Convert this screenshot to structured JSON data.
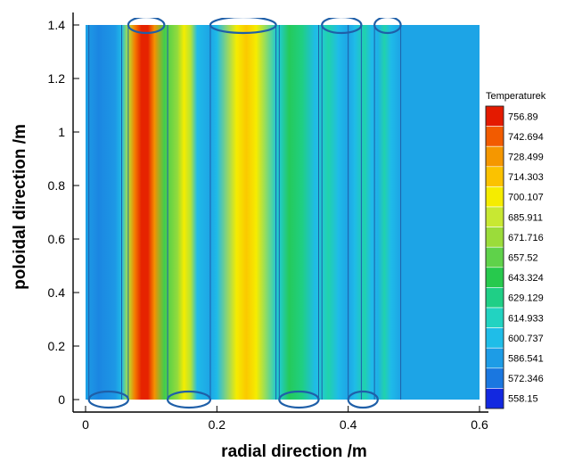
{
  "chart_data": {
    "type": "heatmap",
    "title": "",
    "xlabel": "radial direction /m",
    "ylabel": "poloidal direction /m",
    "xlim": [
      -0.01,
      0.6
    ],
    "ylim": [
      -0.03,
      1.42
    ],
    "xticks": [
      0,
      0.2,
      0.4,
      0.6
    ],
    "xtick_labels": [
      "0",
      "0.2",
      "0.4",
      "0.6"
    ],
    "yticks": [
      0,
      0.2,
      0.4,
      0.6,
      0.8,
      1,
      1.2,
      1.4
    ],
    "ytick_labels": [
      "0",
      "0.2",
      "0.4",
      "0.6",
      "0.8",
      "1",
      "1.2",
      "1.4"
    ],
    "domain": {
      "x": [
        0,
        0.6
      ],
      "y": [
        0,
        1.4
      ]
    },
    "colorbar": {
      "title": "Temperaturek",
      "levels": [
        "756.89",
        "742.694",
        "728.499",
        "714.303",
        "700.107",
        "685.911",
        "671.716",
        "657.52",
        "643.324",
        "629.129",
        "614.933",
        "600.737",
        "586.541",
        "572.346",
        "558.15"
      ],
      "colors": [
        "#e41a00",
        "#f25b00",
        "#f59700",
        "#fbc200",
        "#f5ec00",
        "#c8e832",
        "#9bdc3a",
        "#5fd24a",
        "#27c94d",
        "#1fcf86",
        "#22d3c1",
        "#1fbde8",
        "#1d9ce6",
        "#1a77e0",
        "#1228e0"
      ]
    },
    "radial_temperature_profile": {
      "x": [
        0.0,
        0.005,
        0.02,
        0.045,
        0.055,
        0.065,
        0.075,
        0.085,
        0.095,
        0.105,
        0.12,
        0.14,
        0.15,
        0.16,
        0.17,
        0.19,
        0.2,
        0.23,
        0.245,
        0.26,
        0.29,
        0.295,
        0.31,
        0.33,
        0.35,
        0.36,
        0.37,
        0.385,
        0.4,
        0.41,
        0.425,
        0.435,
        0.445,
        0.455,
        0.465,
        0.48,
        0.49,
        0.6
      ],
      "temperature": [
        590,
        585,
        578,
        585,
        600,
        680,
        735,
        755,
        755,
        730,
        650,
        670,
        700,
        680,
        600,
        590,
        600,
        700,
        712,
        700,
        610,
        610,
        640,
        630,
        600,
        610,
        620,
        600,
        590,
        600,
        620,
        600,
        595,
        620,
        600,
        590,
        590,
        590
      ]
    },
    "pipes": [
      {
        "x": [
          0.005,
          0.065
        ],
        "side": "bottom"
      },
      {
        "x": [
          0.065,
          0.12
        ],
        "side": "top"
      },
      {
        "x": [
          0.125,
          0.19
        ],
        "side": "bottom"
      },
      {
        "x": [
          0.19,
          0.29
        ],
        "side": "top"
      },
      {
        "x": [
          0.295,
          0.355
        ],
        "side": "bottom"
      },
      {
        "x": [
          0.36,
          0.42
        ],
        "side": "top"
      },
      {
        "x": [
          0.4,
          0.445
        ],
        "side": "bottom"
      },
      {
        "x": [
          0.44,
          0.48
        ],
        "side": "top"
      }
    ],
    "grid": false,
    "legend_position": "right"
  }
}
